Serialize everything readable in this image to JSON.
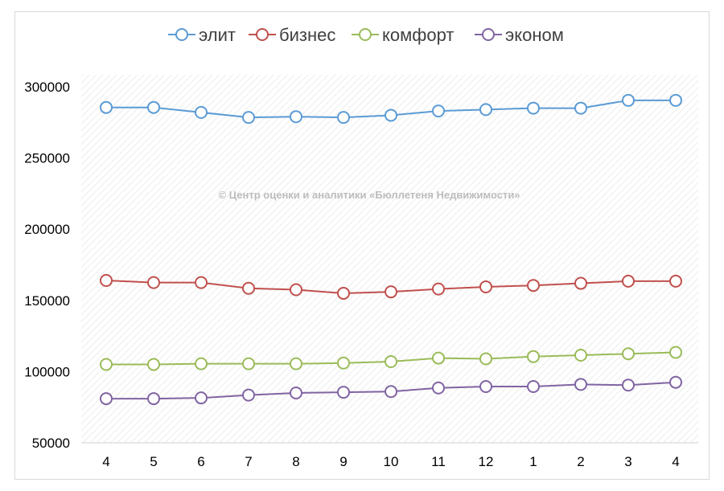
{
  "chart_data": {
    "type": "line",
    "title": "",
    "xlabel": "",
    "ylabel": "",
    "categories": [
      "4",
      "5",
      "6",
      "7",
      "8",
      "9",
      "10",
      "11",
      "12",
      "1",
      "2",
      "3",
      "4"
    ],
    "ylim": [
      50000,
      300000
    ],
    "yticks": [
      "300000",
      "250000",
      "200000",
      "150000",
      "100000",
      "50000"
    ],
    "grid": "diagonal-hatch background, no gridlines",
    "legend_position": "top",
    "watermark": "© Центр оценки и аналитики «Бюллетеня Недвижимости»",
    "series": [
      {
        "name": "элит",
        "color": "#5b9bd5",
        "values": [
          285500,
          285500,
          282000,
          278500,
          279000,
          278500,
          280000,
          283000,
          284000,
          285000,
          285000,
          290500,
          290500
        ]
      },
      {
        "name": "бизнес",
        "color": "#c0504d",
        "values": [
          164000,
          162500,
          162500,
          158500,
          157500,
          155000,
          156000,
          158000,
          159500,
          160500,
          162000,
          163500,
          163500
        ]
      },
      {
        "name": "комфорт",
        "color": "#9bbb59",
        "values": [
          105000,
          105000,
          105500,
          105500,
          105500,
          106000,
          107000,
          109500,
          109000,
          110500,
          111500,
          112500,
          113500
        ]
      },
      {
        "name": "эконом",
        "color": "#8064a2",
        "values": [
          81000,
          81000,
          81500,
          83500,
          85000,
          85500,
          86000,
          88500,
          89500,
          89500,
          91000,
          90500,
          92500
        ]
      }
    ]
  }
}
